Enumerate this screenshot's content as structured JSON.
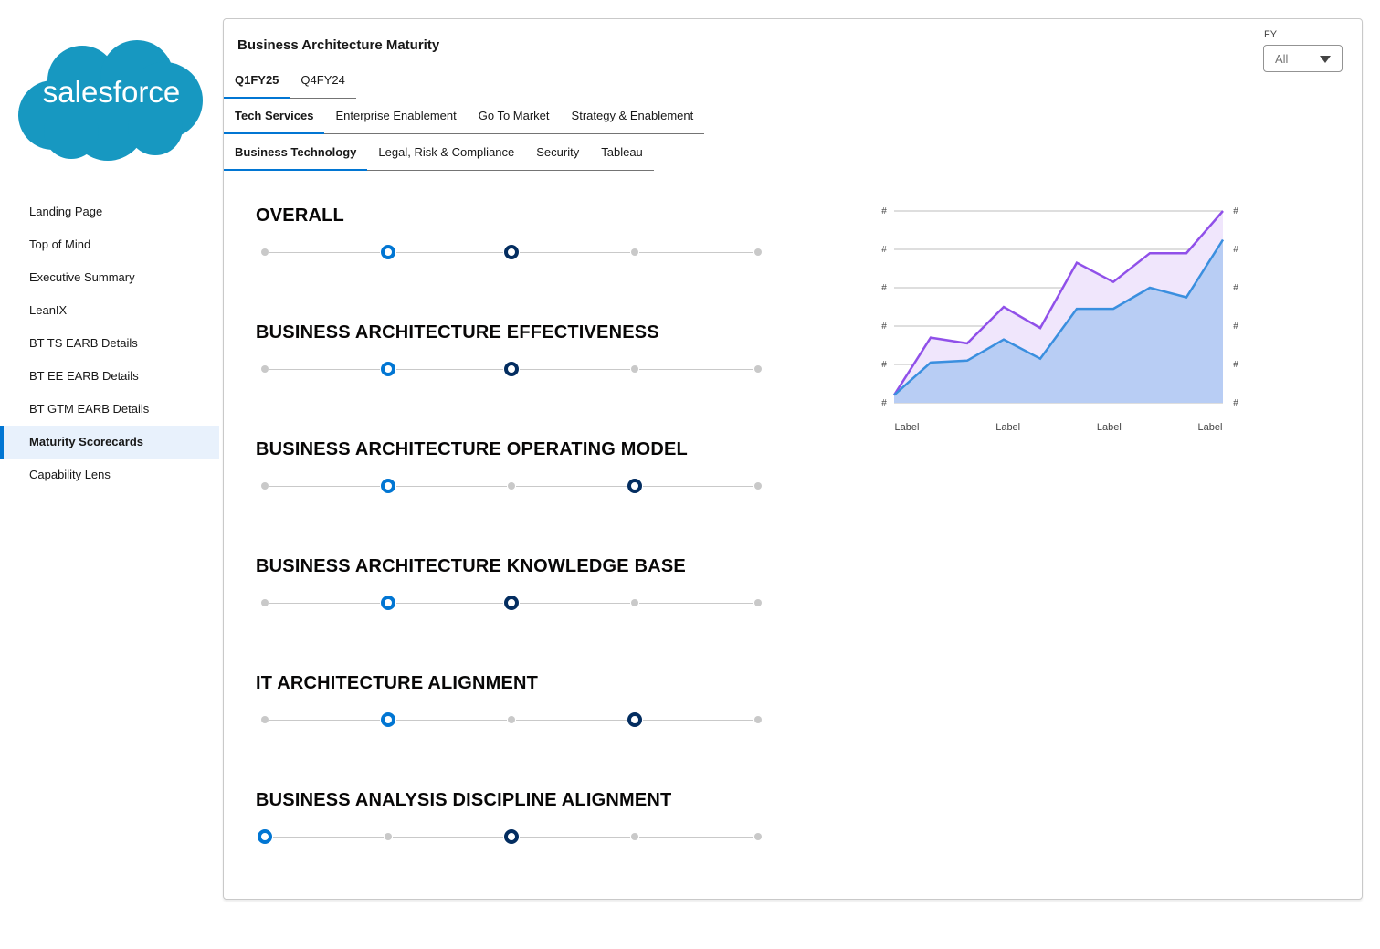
{
  "brand": {
    "logo_text": "salesforce",
    "color": "#1798c1"
  },
  "nav": {
    "items": [
      {
        "label": "Landing Page",
        "active": false
      },
      {
        "label": "Top of Mind",
        "active": false
      },
      {
        "label": "Executive Summary",
        "active": false
      },
      {
        "label": "LeanIX",
        "active": false
      },
      {
        "label": "BT TS EARB Details",
        "active": false
      },
      {
        "label": "BT EE EARB Details",
        "active": false
      },
      {
        "label": "BT GTM EARB Details",
        "active": false
      },
      {
        "label": "Maturity Scorecards",
        "active": true
      },
      {
        "label": "Capability Lens",
        "active": false
      }
    ]
  },
  "card": {
    "title": "Business Architecture Maturity",
    "fy": {
      "label": "FY",
      "value": "All"
    },
    "period_tabs": [
      {
        "label": "Q1FY25",
        "active": true
      },
      {
        "label": "Q4FY24",
        "active": false
      }
    ],
    "group_tabs": [
      {
        "label": "Tech Services",
        "active": true
      },
      {
        "label": "Enterprise Enablement",
        "active": false
      },
      {
        "label": "Go To Market",
        "active": false
      },
      {
        "label": "Strategy & Enablement",
        "active": false
      }
    ],
    "org_tabs": [
      {
        "label": "Business Technology",
        "active": true
      },
      {
        "label": "Legal, Risk & Compliance",
        "active": false
      },
      {
        "label": "Security",
        "active": false
      },
      {
        "label": "Tableau",
        "active": false
      }
    ]
  },
  "scorecards": [
    {
      "title": "OVERALL",
      "steps": 5,
      "current": 2,
      "target": 3
    },
    {
      "title": "BUSINESS ARCHITECTURE EFFECTIVENESS",
      "steps": 5,
      "current": 2,
      "target": 3
    },
    {
      "title": "BUSINESS ARCHITECTURE OPERATING MODEL",
      "steps": 5,
      "current": 2,
      "target": 4
    },
    {
      "title": "BUSINESS ARCHITECTURE KNOWLEDGE BASE",
      "steps": 5,
      "current": 2,
      "target": 3
    },
    {
      "title": "IT ARCHITECTURE ALIGNMENT",
      "steps": 5,
      "current": 2,
      "target": 4
    },
    {
      "title": "BUSINESS ANALYSIS DISCIPLINE ALIGNMENT",
      "steps": 5,
      "current": 1,
      "target": 3
    }
  ],
  "chart_data": {
    "type": "area",
    "title": "",
    "xlabel": "",
    "ylabel": "",
    "x_tick_labels": [
      "Label",
      "Label",
      "Label",
      "Label"
    ],
    "y_tick_labels_left": [
      "#",
      "#",
      "#",
      "#",
      "#",
      "#"
    ],
    "y_tick_labels_right": [
      "#",
      "#",
      "#",
      "#",
      "#",
      "#"
    ],
    "ylim": [
      0,
      5
    ],
    "grid": true,
    "colors": {
      "upper": "#9050e9",
      "upper_fill": "#f0e6fc",
      "lower": "#3a8fdf",
      "lower_fill": "#b8cdf4"
    },
    "series": [
      {
        "values": [
          0.2,
          1.7,
          1.55,
          2.5,
          1.95,
          3.65,
          3.15,
          3.9,
          3.9,
          5.0
        ]
      },
      {
        "values": [
          0.2,
          1.05,
          1.1,
          1.65,
          1.15,
          2.45,
          2.45,
          3.0,
          2.75,
          4.25
        ]
      }
    ]
  }
}
